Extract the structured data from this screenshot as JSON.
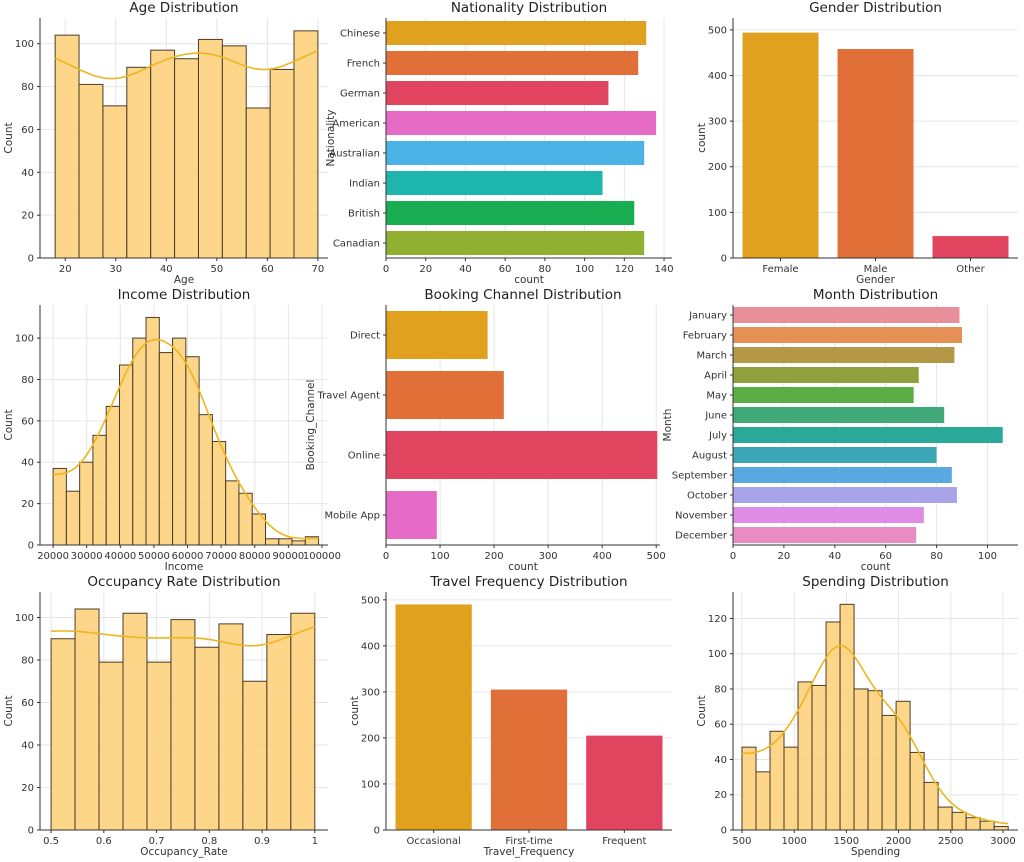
{
  "chart_data": [
    {
      "type": "histogram",
      "title": "Age Distribution",
      "xlabel": "Age",
      "ylabel": "Count",
      "bin_range": [
        18,
        70
      ],
      "counts": [
        104,
        81,
        71,
        89,
        97,
        93,
        102,
        99,
        70,
        88,
        106
      ],
      "xlim": [
        15,
        72
      ],
      "ylim": [
        0,
        112
      ],
      "xticks": [
        20,
        30,
        40,
        50,
        60,
        70
      ],
      "yticks": [
        0,
        20,
        40,
        60,
        80,
        100
      ],
      "kde": true,
      "grid": true
    },
    {
      "type": "barh",
      "title": "Nationality Distribution",
      "xlabel": "count",
      "ylabel": "Nationality",
      "categories": [
        "Chinese",
        "French",
        "German",
        "American",
        "Australian",
        "Indian",
        "British",
        "Canadian"
      ],
      "values": [
        131,
        127,
        112,
        136,
        130,
        109,
        125,
        130
      ],
      "colors": [
        "#E0A21E",
        "#E07038",
        "#E0445E",
        "#E66BC6",
        "#4BB3E6",
        "#1DB5AC",
        "#1AAE52",
        "#8FB030"
      ],
      "xlim": [
        0,
        144
      ],
      "xticks": [
        0,
        20,
        40,
        60,
        80,
        100,
        120,
        140
      ],
      "grid": true
    },
    {
      "type": "bar",
      "title": "Gender Distribution",
      "xlabel": "Gender",
      "ylabel": "count",
      "categories": [
        "Female",
        "Male",
        "Other"
      ],
      "values": [
        494,
        458,
        48
      ],
      "colors": [
        "#E0A21E",
        "#E07038",
        "#E0445E"
      ],
      "ylim": [
        0,
        526
      ],
      "yticks": [
        0,
        100,
        200,
        300,
        400,
        500
      ],
      "grid": true
    },
    {
      "type": "histogram",
      "title": "Income Distribution",
      "xlabel": "Income",
      "ylabel": "Count",
      "bin_range": [
        20000,
        99000
      ],
      "counts": [
        37,
        26,
        40,
        53,
        67,
        87,
        100,
        110,
        93,
        100,
        91,
        63,
        50,
        31,
        25,
        15,
        3,
        3,
        2,
        4
      ],
      "xlim": [
        16100,
        101800
      ],
      "ylim": [
        0,
        116
      ],
      "xticks": [
        20000,
        30000,
        40000,
        50000,
        60000,
        70000,
        80000,
        90000,
        100000
      ],
      "yticks": [
        0,
        20,
        40,
        60,
        80,
        100
      ],
      "kde": true,
      "grid": true
    },
    {
      "type": "barh",
      "title": "Booking Channel Distribution",
      "xlabel": "count",
      "ylabel": "Booking_Channel",
      "categories": [
        "Direct",
        "Travel Agent",
        "Online",
        "Mobile App"
      ],
      "values": [
        188,
        218,
        502,
        94
      ],
      "colors": [
        "#E0A21E",
        "#E07038",
        "#E0445E",
        "#E66BC6"
      ],
      "xlim": [
        0,
        507
      ],
      "xticks": [
        0,
        100,
        200,
        300,
        400,
        500
      ],
      "grid": true
    },
    {
      "type": "barh",
      "title": "Month Distribution",
      "xlabel": "count",
      "ylabel": "Month",
      "categories": [
        "January",
        "February",
        "March",
        "April",
        "May",
        "June",
        "July",
        "August",
        "September",
        "October",
        "November",
        "December"
      ],
      "values": [
        89,
        90,
        87,
        73,
        71,
        83,
        106,
        80,
        86,
        88,
        75,
        72
      ],
      "colors": [
        "#E8909A",
        "#E59055",
        "#B59845",
        "#8FA03C",
        "#5BAE45",
        "#3FA97A",
        "#2AA89A",
        "#3BA6B5",
        "#5AA8E0",
        "#A9A3EA",
        "#DE8CE6",
        "#E88CC3"
      ],
      "xlim": [
        0,
        112
      ],
      "xticks": [
        0,
        20,
        40,
        60,
        80,
        100
      ],
      "grid": true
    },
    {
      "type": "histogram",
      "title": "Occupancy Rate Distribution",
      "xlabel": "Occupancy_Rate",
      "ylabel": "Count",
      "bin_range": [
        0.5,
        1.0
      ],
      "counts": [
        90,
        104,
        79,
        102,
        79,
        99,
        86,
        97,
        70,
        92,
        102
      ],
      "xlim": [
        0.479,
        1.025
      ],
      "ylim": [
        0,
        112
      ],
      "xticks": [
        0.5,
        0.6,
        0.7,
        0.8,
        0.9,
        1.0
      ],
      "yticks": [
        0,
        20,
        40,
        60,
        80,
        100
      ],
      "kde": true,
      "grid": true
    },
    {
      "type": "bar",
      "title": "Travel Frequency Distribution",
      "xlabel": "Travel_Frequency",
      "ylabel": "count",
      "categories": [
        "Occasional",
        "First-time",
        "Frequent"
      ],
      "values": [
        490,
        305,
        205
      ],
      "colors": [
        "#E0A21E",
        "#E07038",
        "#E0445E"
      ],
      "ylim": [
        0,
        517
      ],
      "yticks": [
        0,
        100,
        200,
        300,
        400,
        500
      ],
      "grid": true
    },
    {
      "type": "histogram",
      "title": "Spending Distribution",
      "xlabel": "Spending",
      "ylabel": "Count",
      "bin_range": [
        500,
        3050
      ],
      "counts": [
        47,
        33,
        56,
        47,
        84,
        82,
        118,
        128,
        80,
        79,
        65,
        73,
        44,
        27,
        13,
        10,
        7,
        5,
        2
      ],
      "xlim": [
        414,
        3144
      ],
      "ylim": [
        0,
        135
      ],
      "xticks": [
        500,
        1000,
        1500,
        2000,
        2500,
        3000
      ],
      "yticks": [
        0,
        20,
        40,
        60,
        80,
        100,
        120
      ],
      "kde": true,
      "grid": true
    }
  ]
}
